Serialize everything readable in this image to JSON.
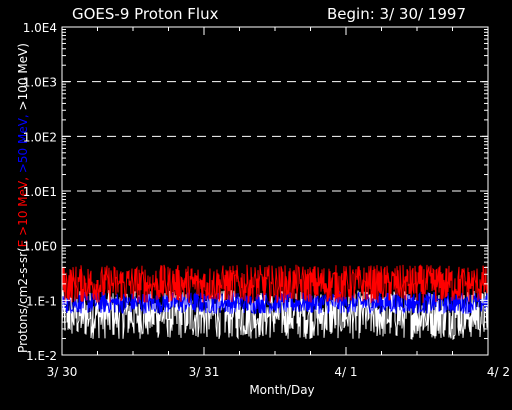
{
  "chart_data": {
    "type": "line",
    "title": "GOES-9 Proton Flux",
    "subtitle": "Begin: 3/ 30/ 1997",
    "xlabel": "Month/Day",
    "ylabel_parts": [
      {
        "text": "Protons/cm2-s-sr(",
        "color": "#ffffff"
      },
      {
        "text": "E >10 MeV, ",
        "color": "#ff0000"
      },
      {
        "text": ">50 MeV, ",
        "color": "#0000ff"
      },
      {
        "text": ">100 MeV",
        "color": "#ffffff"
      },
      {
        "text": ")",
        "color": "#ffffff"
      }
    ],
    "y_scale": "log",
    "ylim": [
      0.01,
      10000
    ],
    "y_ticks": [
      {
        "value": 0.01,
        "label": "1.E-2"
      },
      {
        "value": 0.1,
        "label": "1.E-1"
      },
      {
        "value": 1,
        "label": "1.0E0"
      },
      {
        "value": 10,
        "label": "1.0E1"
      },
      {
        "value": 100,
        "label": "1.0E2"
      },
      {
        "value": 1000,
        "label": "1.0E3"
      },
      {
        "value": 10000,
        "label": "1.0E4"
      }
    ],
    "x_ticks": [
      {
        "value": 0,
        "label": "3/ 30"
      },
      {
        "value": 1,
        "label": "3/ 31"
      },
      {
        "value": 2,
        "label": "4/ 1"
      },
      {
        "value": 3,
        "label": "4/ 2"
      }
    ],
    "xlim": [
      0,
      3
    ],
    "grid_lines_y": [
      1,
      10,
      100,
      1000
    ],
    "grid": "dashed",
    "series": [
      {
        "color": "#ff0000",
        "level": 0.2,
        "spread": 0.35
      },
      {
        "color": "#0000ff",
        "level": 0.09,
        "spread": 0.2
      },
      {
        "color": "#ffffff",
        "level": 0.055,
        "spread": 0.45
      }
    ]
  }
}
